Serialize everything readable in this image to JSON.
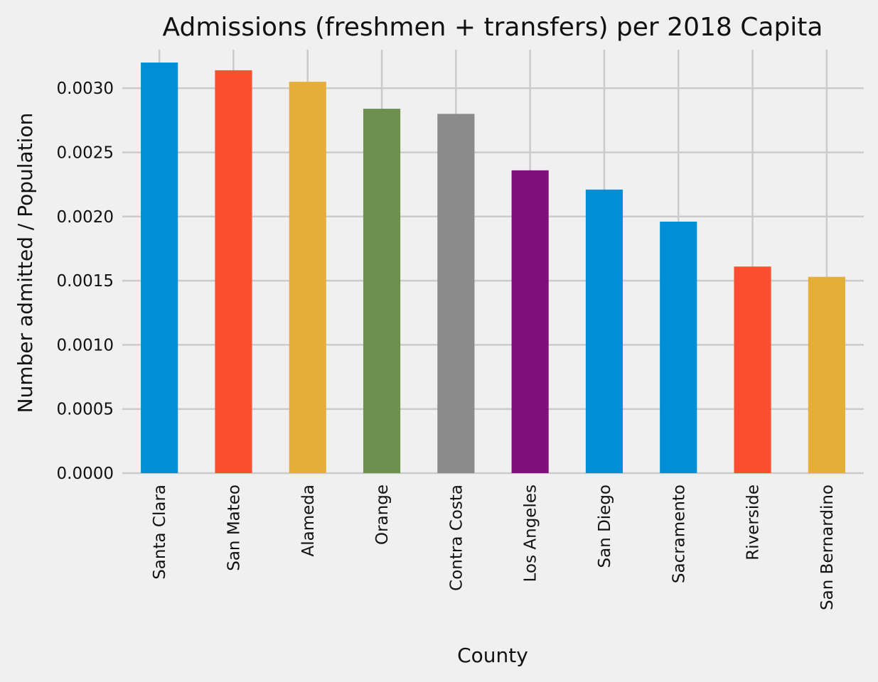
{
  "chart_data": {
    "type": "bar",
    "title": "Admissions (freshmen + transfers) per 2018 Capita",
    "xlabel": "County",
    "ylabel": "Number admitted / Population",
    "categories": [
      "Santa Clara",
      "San Mateo",
      "Alameda",
      "Orange",
      "Contra Costa",
      "Los Angeles",
      "San Diego",
      "Sacramento",
      "Riverside",
      "San Bernardino"
    ],
    "values": [
      0.0032,
      0.00314,
      0.00305,
      0.00284,
      0.0028,
      0.00236,
      0.00221,
      0.00196,
      0.00161,
      0.00153
    ],
    "colors": [
      "#008fd5",
      "#fc4f30",
      "#e5ae38",
      "#6d904f",
      "#8b8b8b",
      "#810f7c",
      "#008fd5",
      "#008fd5",
      "#fc4f30",
      "#e5ae38"
    ],
    "ylim": [
      0,
      0.0033
    ],
    "yticks": [
      0.0,
      0.0005,
      0.001,
      0.0015,
      0.002,
      0.0025,
      0.003
    ],
    "ytick_labels": [
      "0.0000",
      "0.0005",
      "0.0010",
      "0.0015",
      "0.0020",
      "0.0025",
      "0.0030"
    ],
    "grid": true,
    "style": "fivethirtyeight"
  }
}
